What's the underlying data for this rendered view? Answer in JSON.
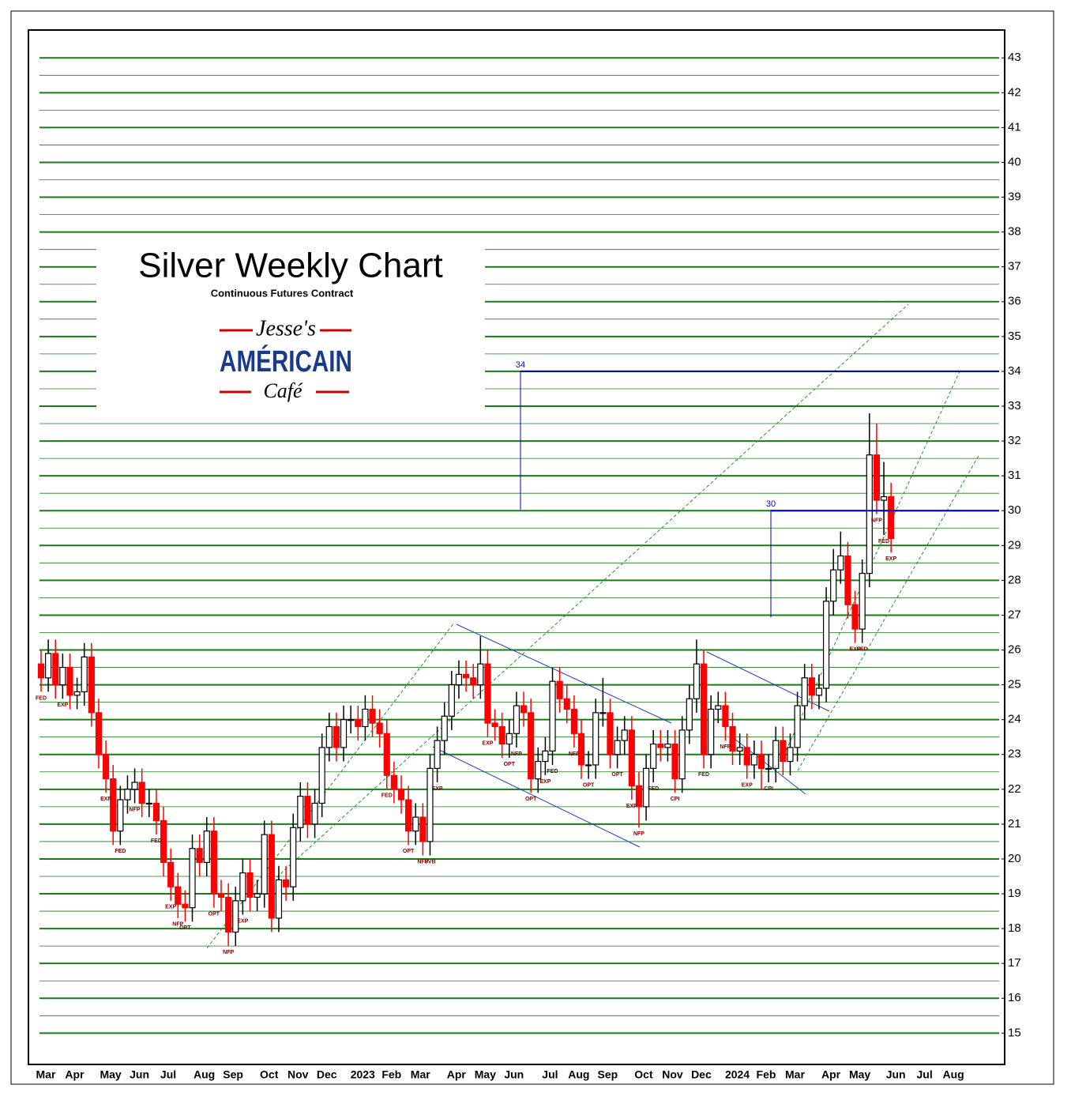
{
  "chart_data": {
    "type": "candlestick",
    "title": "Silver Weekly Chart",
    "subtitle": "Continuous Futures Contract",
    "logo": [
      "Jesse's",
      "AMÉRICAIN",
      "Café"
    ],
    "up_color": "#ffffff",
    "down_color": "#ff0000",
    "grid_color": "#1a7a1a",
    "level_color": "#0000cc",
    "grid": true,
    "ylim": [
      14.1,
      43.8
    ],
    "yticks": [
      15,
      16,
      17,
      18,
      19,
      20,
      21,
      22,
      23,
      24,
      25,
      26,
      27,
      28,
      29,
      30,
      31,
      32,
      33,
      34,
      35,
      36,
      37,
      38,
      39,
      40,
      41,
      42,
      43
    ],
    "levels": [
      34,
      30
    ],
    "categories": [
      "Mar",
      null,
      null,
      null,
      "Apr",
      null,
      null,
      null,
      null,
      "May",
      null,
      null,
      null,
      "Jun",
      null,
      null,
      null,
      "Jul",
      null,
      null,
      null,
      null,
      "Aug",
      null,
      null,
      null,
      "Sep",
      null,
      null,
      null,
      null,
      "Oct",
      null,
      null,
      null,
      "Nov",
      null,
      null,
      null,
      "Dec",
      null,
      null,
      null,
      null,
      "2023",
      null,
      null,
      null,
      "Feb",
      null,
      null,
      null,
      "Mar",
      null,
      null,
      null,
      null,
      "Apr",
      null,
      null,
      null,
      "May",
      null,
      null,
      null,
      "Jun",
      null,
      null,
      null,
      null,
      "Jul",
      null,
      null,
      null,
      "Aug",
      null,
      null,
      null,
      "Sep",
      null,
      null,
      null,
      null,
      "Oct",
      null,
      null,
      null,
      "Nov",
      null,
      null,
      null,
      "Dec",
      null,
      null,
      null,
      null,
      "2024",
      null,
      null,
      null,
      "Feb",
      null,
      null,
      null,
      "Mar",
      null,
      null,
      null,
      null,
      "Apr",
      null,
      null,
      null,
      "May",
      null,
      null,
      null,
      null,
      "Jun",
      null,
      null,
      null,
      "Jul",
      null,
      null,
      null,
      "Aug",
      null,
      null,
      null,
      null,
      null,
      null,
      null
    ],
    "open": [
      25.6,
      25.2,
      25.9,
      25.0,
      25.5,
      24.7,
      24.8,
      25.8,
      24.2,
      23.0,
      22.3,
      20.8,
      21.7,
      22.0,
      22.2,
      21.6,
      21.6,
      21.1,
      19.9,
      19.2,
      18.7,
      18.6,
      20.3,
      19.9,
      20.8,
      19.0,
      18.9,
      17.9,
      18.8,
      19.6,
      18.9,
      19.0,
      20.7,
      18.3,
      19.4,
      19.2,
      20.9,
      21.8,
      21.0,
      21.6,
      23.2,
      23.8,
      23.2,
      24.0,
      24.0,
      23.8,
      24.3,
      23.9,
      23.6,
      22.4,
      22.0,
      21.7,
      20.8,
      21.2,
      20.5,
      22.6,
      23.4,
      24.1,
      25.0,
      25.3,
      25.2,
      25.0,
      25.6,
      23.9,
      23.8,
      23.3,
      23.6,
      24.4,
      24.2,
      22.3,
      22.8,
      23.1,
      25.1,
      24.6,
      24.3,
      23.6,
      22.7,
      22.7,
      24.2,
      24.2,
      23.0,
      23.4,
      23.7,
      22.1,
      21.5,
      22.6,
      23.3,
      23.2,
      23.3,
      22.3,
      23.7,
      24.6,
      25.6,
      23.0,
      24.3,
      24.4,
      23.8,
      23.1,
      23.2,
      22.7,
      23.0,
      22.6,
      22.6,
      23.4,
      22.8,
      23.2,
      24.4,
      25.2,
      24.7,
      24.9,
      27.4,
      28.3,
      28.7,
      27.3,
      26.6,
      28.2,
      31.6,
      30.3,
      30.4,
      null,
      null,
      null,
      null,
      null,
      null,
      null,
      null,
      null,
      null,
      null,
      null,
      null,
      null,
      null
    ],
    "high": [
      26.0,
      26.3,
      26.3,
      25.9,
      25.9,
      25.2,
      26.2,
      26.2,
      24.6,
      23.4,
      22.7,
      22.1,
      22.4,
      22.6,
      22.6,
      22.0,
      22.0,
      21.5,
      20.3,
      19.6,
      19.1,
      20.7,
      20.7,
      21.2,
      21.2,
      19.4,
      19.3,
      19.2,
      20.0,
      20.0,
      19.4,
      21.1,
      21.1,
      19.8,
      19.8,
      21.3,
      22.2,
      22.2,
      22.0,
      23.6,
      24.2,
      24.2,
      24.4,
      24.4,
      24.4,
      24.7,
      24.7,
      24.3,
      24.0,
      22.8,
      22.4,
      22.1,
      21.6,
      21.6,
      23.0,
      23.8,
      24.5,
      25.4,
      25.7,
      25.7,
      25.6,
      26.4,
      26.0,
      24.3,
      24.2,
      24.0,
      24.8,
      24.8,
      24.6,
      23.2,
      23.5,
      25.5,
      25.5,
      25.0,
      24.7,
      24.0,
      23.1,
      24.6,
      25.2,
      24.6,
      23.8,
      24.1,
      24.1,
      22.5,
      23.0,
      23.7,
      23.7,
      23.7,
      23.7,
      24.1,
      25.0,
      26.3,
      26.0,
      24.7,
      24.8,
      24.8,
      24.2,
      23.6,
      23.6,
      23.4,
      23.4,
      23.0,
      23.8,
      23.8,
      23.6,
      24.8,
      25.6,
      25.6,
      25.3,
      27.8,
      28.9,
      29.4,
      29.1,
      27.7,
      28.6,
      32.8,
      32.5,
      31.4,
      30.8,
      null,
      null,
      null,
      null,
      null,
      null,
      null,
      null,
      null,
      null,
      null,
      null,
      null,
      null,
      null
    ],
    "low": [
      24.8,
      24.8,
      24.6,
      24.6,
      24.3,
      24.3,
      24.4,
      23.8,
      22.6,
      21.9,
      20.4,
      20.4,
      21.3,
      21.6,
      21.2,
      21.2,
      20.7,
      19.5,
      18.8,
      18.3,
      18.2,
      18.2,
      19.5,
      19.5,
      18.6,
      18.5,
      17.5,
      17.5,
      18.4,
      18.5,
      18.5,
      18.6,
      17.9,
      17.9,
      18.8,
      18.8,
      20.5,
      20.6,
      20.6,
      21.2,
      22.8,
      22.8,
      22.8,
      23.6,
      23.4,
      23.4,
      23.5,
      23.2,
      22.0,
      21.6,
      21.3,
      20.4,
      20.4,
      20.1,
      20.1,
      22.2,
      23.0,
      23.7,
      24.6,
      24.8,
      24.6,
      24.6,
      23.5,
      23.4,
      22.9,
      22.9,
      23.2,
      23.8,
      21.9,
      21.9,
      22.4,
      22.7,
      24.2,
      23.9,
      23.2,
      22.3,
      22.3,
      22.3,
      23.8,
      22.6,
      22.6,
      23.0,
      21.7,
      20.9,
      21.1,
      22.2,
      22.8,
      22.8,
      21.9,
      21.9,
      23.3,
      24.2,
      22.6,
      22.6,
      23.9,
      23.4,
      22.7,
      22.7,
      22.3,
      22.3,
      22.0,
      22.2,
      22.2,
      22.4,
      22.4,
      22.8,
      24.0,
      24.3,
      24.3,
      24.5,
      27.0,
      27.9,
      26.9,
      26.2,
      26.2,
      27.8,
      29.9,
      29.3,
      28.8,
      null,
      null,
      null,
      null,
      null,
      null,
      null,
      null,
      null,
      null,
      null,
      null,
      null,
      null,
      null
    ],
    "close": [
      25.2,
      25.9,
      25.0,
      25.5,
      24.7,
      24.8,
      25.8,
      24.2,
      23.0,
      22.3,
      20.8,
      21.7,
      22.0,
      22.2,
      21.6,
      21.6,
      21.1,
      19.9,
      19.2,
      18.7,
      18.6,
      20.3,
      19.9,
      20.8,
      19.0,
      18.9,
      17.9,
      18.8,
      19.6,
      18.9,
      19.0,
      20.7,
      18.3,
      19.4,
      19.2,
      20.9,
      21.8,
      21.0,
      21.6,
      23.2,
      23.8,
      23.2,
      24.0,
      24.0,
      23.8,
      24.3,
      23.9,
      23.6,
      22.4,
      22.0,
      21.7,
      20.8,
      21.2,
      20.5,
      22.6,
      23.4,
      24.1,
      25.0,
      25.3,
      25.2,
      25.0,
      25.6,
      23.9,
      23.8,
      23.3,
      23.6,
      24.4,
      24.2,
      22.3,
      22.8,
      23.1,
      25.1,
      24.6,
      24.3,
      23.6,
      22.7,
      22.7,
      24.2,
      24.2,
      23.0,
      23.4,
      23.7,
      22.1,
      21.5,
      22.6,
      23.3,
      23.2,
      23.3,
      22.3,
      23.7,
      24.6,
      25.6,
      23.0,
      24.3,
      24.4,
      23.8,
      23.1,
      23.2,
      22.7,
      23.0,
      22.6,
      22.6,
      23.4,
      22.8,
      23.2,
      24.4,
      25.2,
      24.7,
      24.9,
      27.4,
      28.3,
      28.7,
      27.3,
      26.6,
      28.2,
      31.6,
      30.3,
      30.4,
      29.2,
      null,
      null,
      null,
      null,
      null,
      null,
      null,
      null,
      null,
      null,
      null,
      null,
      null,
      null,
      null
    ],
    "annotations": [
      {
        "index": 0,
        "text": "FED"
      },
      {
        "index": 3,
        "text": "EXP"
      },
      {
        "index": 9,
        "text": "EXP"
      },
      {
        "index": 11,
        "text": "FED"
      },
      {
        "index": 13,
        "text": "NFP"
      },
      {
        "index": 16,
        "text": "FED"
      },
      {
        "index": 18,
        "text": "EXP"
      },
      {
        "index": 19,
        "text": "NFP"
      },
      {
        "index": 20,
        "text": "OPT"
      },
      {
        "index": 24,
        "text": "OPT"
      },
      {
        "index": 26,
        "text": "NFP"
      },
      {
        "index": 28,
        "text": "EXP"
      },
      {
        "index": 48,
        "text": "FED"
      },
      {
        "index": 51,
        "text": "OPT"
      },
      {
        "index": 53,
        "text": "NFP"
      },
      {
        "index": 54,
        "text": "SVB"
      },
      {
        "index": 55,
        "text": "EXP"
      },
      {
        "index": 62,
        "text": "EXP"
      },
      {
        "index": 65,
        "text": "OPT"
      },
      {
        "index": 66,
        "text": "NFP"
      },
      {
        "index": 68,
        "text": "OPT"
      },
      {
        "index": 70,
        "text": "EXP"
      },
      {
        "index": 71,
        "text": "FED"
      },
      {
        "index": 74,
        "text": "NFP"
      },
      {
        "index": 76,
        "text": "OPT"
      },
      {
        "index": 80,
        "text": "OPT"
      },
      {
        "index": 82,
        "text": "EXP"
      },
      {
        "index": 83,
        "text": "NFP"
      },
      {
        "index": 85,
        "text": "FED"
      },
      {
        "index": 88,
        "text": "CPI"
      },
      {
        "index": 92,
        "text": "FED"
      },
      {
        "index": 95,
        "text": "NFP"
      },
      {
        "index": 98,
        "text": "EXP"
      },
      {
        "index": 101,
        "text": "CPI"
      },
      {
        "index": 113,
        "text": "EXP"
      },
      {
        "index": 114,
        "text": "FED"
      },
      {
        "index": 116,
        "text": "NFP"
      },
      {
        "index": 117,
        "text": "FED"
      },
      {
        "index": 118,
        "text": "EXP"
      }
    ]
  }
}
